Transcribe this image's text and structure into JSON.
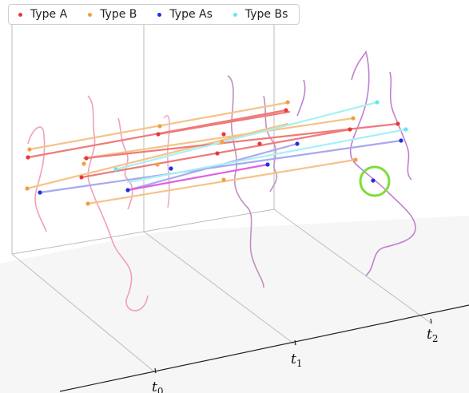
{
  "legend": [
    {
      "label": "Type A",
      "color": "#e8383b"
    },
    {
      "label": "Type B",
      "color": "#f0a040"
    },
    {
      "label": "Type As",
      "color": "#2030e0"
    },
    {
      "label": "Type Bs",
      "color": "#60e8f0"
    }
  ],
  "chart_data": {
    "type": "scatter",
    "title": "",
    "time_axis": {
      "ticks": [
        {
          "main": "t",
          "sub": "0"
        },
        {
          "main": "t",
          "sub": "1"
        },
        {
          "main": "t",
          "sub": "2"
        }
      ]
    },
    "highlight": {
      "color": "#7ddd3a",
      "note": "circled point on last frame"
    },
    "series": [
      {
        "name": "Type A",
        "color": "#e8383b"
      },
      {
        "name": "Type B",
        "color": "#f0a040"
      },
      {
        "name": "Type As",
        "color": "#2030e0"
      },
      {
        "name": "Type Bs",
        "color": "#60e8f0"
      }
    ]
  }
}
